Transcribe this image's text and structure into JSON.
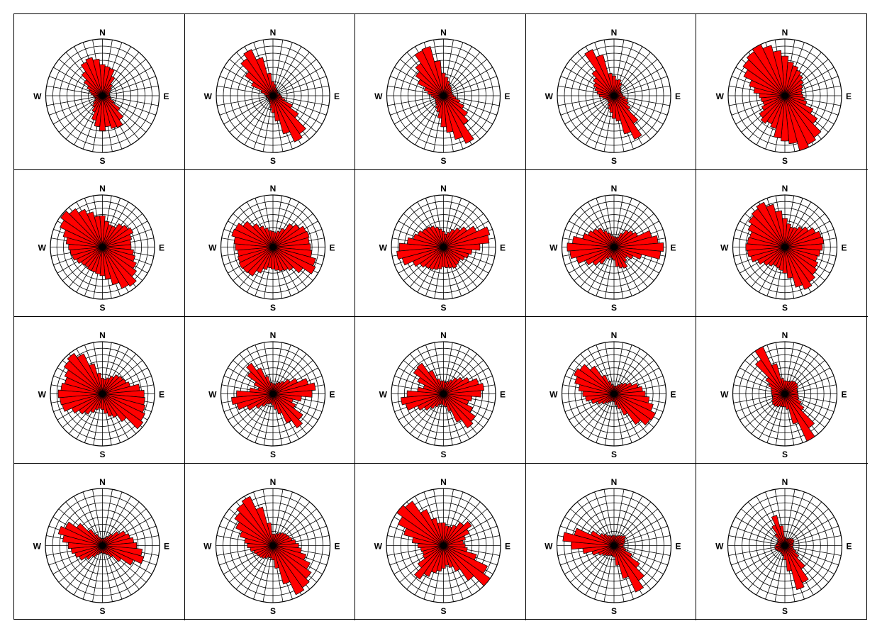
{
  "labels": {
    "north": "N",
    "south": "S",
    "east": "E",
    "west": "W"
  },
  "colors": {
    "petal": "#ff0000",
    "petal_stroke": "#000000",
    "grid": "#000000",
    "background": "#ffffff"
  },
  "chart_data": [
    {
      "type": "rose",
      "sectors": 36,
      "rings": 8,
      "values": [
        0.55,
        0.52,
        0.5,
        0.38,
        0.25,
        0.2,
        0.16,
        0.13,
        0.12,
        0.13,
        0.14,
        0.16,
        0.23,
        0.38,
        0.52,
        0.62,
        0.6,
        0.55,
        0.62,
        0.55,
        0.45,
        0.32,
        0.25,
        0.2,
        0.15,
        0.13,
        0.14,
        0.16,
        0.2,
        0.24,
        0.3,
        0.4,
        0.52,
        0.66,
        0.7,
        0.65
      ]
    },
    {
      "type": "rose",
      "sectors": 36,
      "rings": 8,
      "values": [
        0.25,
        0.2,
        0.15,
        0.12,
        0.11,
        0.1,
        0.1,
        0.1,
        0.12,
        0.14,
        0.16,
        0.22,
        0.38,
        0.55,
        0.82,
        0.9,
        0.7,
        0.45,
        0.3,
        0.22,
        0.15,
        0.12,
        0.11,
        0.1,
        0.1,
        0.1,
        0.11,
        0.12,
        0.15,
        0.22,
        0.42,
        0.6,
        0.8,
        0.9,
        0.7,
        0.4
      ]
    },
    {
      "type": "rose",
      "sectors": 36,
      "rings": 8,
      "values": [
        0.4,
        0.33,
        0.27,
        0.22,
        0.2,
        0.18,
        0.16,
        0.16,
        0.16,
        0.18,
        0.22,
        0.3,
        0.4,
        0.52,
        0.62,
        0.93,
        0.8,
        0.65,
        0.55,
        0.4,
        0.3,
        0.25,
        0.2,
        0.18,
        0.16,
        0.16,
        0.18,
        0.22,
        0.28,
        0.35,
        0.5,
        0.6,
        0.7,
        0.88,
        0.9,
        0.62
      ]
    },
    {
      "type": "rose",
      "sectors": 36,
      "rings": 8,
      "values": [
        0.35,
        0.28,
        0.3,
        0.25,
        0.18,
        0.15,
        0.14,
        0.14,
        0.15,
        0.16,
        0.2,
        0.25,
        0.28,
        0.35,
        0.6,
        0.85,
        0.7,
        0.45,
        0.4,
        0.3,
        0.25,
        0.2,
        0.15,
        0.14,
        0.14,
        0.16,
        0.2,
        0.26,
        0.3,
        0.35,
        0.4,
        0.45,
        0.55,
        0.9,
        0.75,
        0.4
      ]
    },
    {
      "type": "rose",
      "sectors": 36,
      "rings": 8,
      "values": [
        0.7,
        0.6,
        0.55,
        0.5,
        0.45,
        0.4,
        0.35,
        0.32,
        0.3,
        0.32,
        0.35,
        0.4,
        0.55,
        0.7,
        0.9,
        0.95,
        1.0,
        0.85,
        0.8,
        0.75,
        0.6,
        0.55,
        0.6,
        0.55,
        0.45,
        0.4,
        0.42,
        0.45,
        0.55,
        0.65,
        0.8,
        0.9,
        0.95,
        1.0,
        0.92,
        0.8
      ]
    },
    {
      "type": "rose",
      "sectors": 36,
      "rings": 8,
      "values": [
        0.6,
        0.5,
        0.45,
        0.45,
        0.55,
        0.6,
        0.65,
        0.58,
        0.55,
        0.55,
        0.6,
        0.65,
        0.72,
        0.8,
        0.92,
        0.88,
        0.75,
        0.62,
        0.55,
        0.52,
        0.5,
        0.5,
        0.48,
        0.5,
        0.55,
        0.6,
        0.62,
        0.65,
        0.7,
        0.78,
        0.9,
        0.98,
        0.9,
        0.8,
        0.7,
        0.6
      ]
    },
    {
      "type": "rose",
      "sectors": 36,
      "rings": 8,
      "values": [
        0.3,
        0.28,
        0.32,
        0.4,
        0.55,
        0.62,
        0.7,
        0.72,
        0.7,
        0.72,
        0.75,
        0.85,
        0.9,
        0.7,
        0.55,
        0.5,
        0.48,
        0.45,
        0.42,
        0.4,
        0.45,
        0.55,
        0.68,
        0.7,
        0.72,
        0.7,
        0.68,
        0.72,
        0.75,
        0.82,
        0.8,
        0.7,
        0.55,
        0.45,
        0.38,
        0.32
      ]
    },
    {
      "type": "rose",
      "sectors": 36,
      "rings": 8,
      "values": [
        0.3,
        0.25,
        0.3,
        0.38,
        0.45,
        0.55,
        0.7,
        0.92,
        0.88,
        0.7,
        0.55,
        0.5,
        0.45,
        0.4,
        0.42,
        0.45,
        0.42,
        0.4,
        0.38,
        0.42,
        0.45,
        0.48,
        0.5,
        0.55,
        0.65,
        0.82,
        0.9,
        0.85,
        0.7,
        0.6,
        0.55,
        0.5,
        0.48,
        0.45,
        0.4,
        0.35
      ]
    },
    {
      "type": "rose",
      "sectors": 36,
      "rings": 8,
      "values": [
        0.2,
        0.18,
        0.2,
        0.3,
        0.4,
        0.45,
        0.5,
        0.75,
        0.85,
        0.95,
        0.9,
        0.55,
        0.4,
        0.3,
        0.35,
        0.45,
        0.42,
        0.38,
        0.25,
        0.22,
        0.2,
        0.25,
        0.4,
        0.5,
        0.6,
        0.75,
        0.85,
        0.9,
        0.8,
        0.62,
        0.55,
        0.5,
        0.45,
        0.35,
        0.28,
        0.22
      ]
    },
    {
      "type": "rose",
      "sectors": 36,
      "rings": 8,
      "values": [
        0.55,
        0.45,
        0.4,
        0.42,
        0.48,
        0.55,
        0.65,
        0.72,
        0.75,
        0.72,
        0.68,
        0.65,
        0.7,
        0.75,
        0.82,
        0.9,
        0.8,
        0.6,
        0.5,
        0.45,
        0.42,
        0.4,
        0.45,
        0.5,
        0.58,
        0.68,
        0.72,
        0.75,
        0.72,
        0.7,
        0.78,
        0.85,
        0.9,
        0.95,
        0.85,
        0.7
      ]
    },
    {
      "type": "rose",
      "sectors": 36,
      "rings": 8,
      "values": [
        0.3,
        0.28,
        0.32,
        0.38,
        0.45,
        0.48,
        0.5,
        0.55,
        0.72,
        0.8,
        0.82,
        0.85,
        0.9,
        0.95,
        0.65,
        0.5,
        0.45,
        0.38,
        0.3,
        0.28,
        0.32,
        0.4,
        0.48,
        0.55,
        0.65,
        0.8,
        0.82,
        0.85,
        0.8,
        0.75,
        0.8,
        0.9,
        0.95,
        0.85,
        0.6,
        0.4
      ]
    },
    {
      "type": "rose",
      "sectors": 36,
      "rings": 8,
      "values": [
        0.2,
        0.18,
        0.22,
        0.25,
        0.3,
        0.4,
        0.52,
        0.7,
        0.82,
        0.75,
        0.55,
        0.4,
        0.48,
        0.7,
        0.8,
        0.62,
        0.4,
        0.3,
        0.22,
        0.18,
        0.2,
        0.22,
        0.3,
        0.4,
        0.55,
        0.72,
        0.8,
        0.7,
        0.45,
        0.3,
        0.4,
        0.6,
        0.72,
        0.55,
        0.35,
        0.22
      ]
    },
    {
      "type": "rose",
      "sectors": 36,
      "rings": 8,
      "values": [
        0.25,
        0.22,
        0.25,
        0.3,
        0.38,
        0.45,
        0.55,
        0.7,
        0.78,
        0.72,
        0.55,
        0.5,
        0.62,
        0.75,
        0.8,
        0.6,
        0.35,
        0.25,
        0.22,
        0.2,
        0.22,
        0.28,
        0.35,
        0.45,
        0.55,
        0.75,
        0.82,
        0.7,
        0.5,
        0.4,
        0.55,
        0.7,
        0.72,
        0.5,
        0.3,
        0.25
      ]
    },
    {
      "type": "rose",
      "sectors": 36,
      "rings": 8,
      "values": [
        0.15,
        0.14,
        0.16,
        0.2,
        0.25,
        0.3,
        0.38,
        0.48,
        0.55,
        0.6,
        0.68,
        0.78,
        0.88,
        0.85,
        0.72,
        0.45,
        0.3,
        0.22,
        0.15,
        0.14,
        0.15,
        0.18,
        0.22,
        0.28,
        0.35,
        0.45,
        0.55,
        0.6,
        0.68,
        0.78,
        0.85,
        0.8,
        0.65,
        0.4,
        0.25,
        0.18
      ]
    },
    {
      "type": "rose",
      "sectors": 36,
      "rings": 8,
      "values": [
        0.25,
        0.25,
        0.25,
        0.28,
        0.3,
        0.3,
        0.28,
        0.25,
        0.24,
        0.25,
        0.26,
        0.28,
        0.35,
        0.45,
        0.8,
        1.0,
        0.6,
        0.3,
        0.25,
        0.25,
        0.25,
        0.28,
        0.3,
        0.3,
        0.28,
        0.25,
        0.24,
        0.25,
        0.26,
        0.28,
        0.35,
        0.45,
        0.8,
        1.0,
        0.6,
        0.3
      ]
    },
    {
      "type": "rose",
      "sectors": 36,
      "rings": 8,
      "values": [
        0.12,
        0.12,
        0.14,
        0.18,
        0.25,
        0.35,
        0.45,
        0.5,
        0.55,
        0.6,
        0.7,
        0.75,
        0.6,
        0.4,
        0.25,
        0.18,
        0.15,
        0.14,
        0.13,
        0.12,
        0.14,
        0.18,
        0.25,
        0.35,
        0.45,
        0.5,
        0.55,
        0.6,
        0.7,
        0.8,
        0.72,
        0.55,
        0.35,
        0.22,
        0.15,
        0.12
      ]
    },
    {
      "type": "rose",
      "sectors": 36,
      "rings": 8,
      "values": [
        0.2,
        0.2,
        0.22,
        0.25,
        0.28,
        0.3,
        0.32,
        0.35,
        0.4,
        0.45,
        0.5,
        0.6,
        0.72,
        0.82,
        0.9,
        0.95,
        0.7,
        0.4,
        0.25,
        0.22,
        0.22,
        0.25,
        0.28,
        0.3,
        0.32,
        0.35,
        0.4,
        0.45,
        0.5,
        0.6,
        0.72,
        0.82,
        0.9,
        0.95,
        0.7,
        0.4
      ]
    },
    {
      "type": "rose",
      "sectors": 36,
      "rings": 8,
      "values": [
        0.4,
        0.35,
        0.35,
        0.4,
        0.5,
        0.6,
        0.5,
        0.4,
        0.35,
        0.38,
        0.42,
        0.6,
        0.85,
        1.0,
        0.75,
        0.5,
        0.4,
        0.35,
        0.4,
        0.45,
        0.5,
        0.6,
        0.72,
        0.55,
        0.4,
        0.38,
        0.4,
        0.45,
        0.55,
        0.72,
        0.88,
        1.0,
        0.95,
        0.7,
        0.5,
        0.4
      ]
    },
    {
      "type": "rose",
      "sectors": 36,
      "rings": 8,
      "values": [
        0.18,
        0.16,
        0.18,
        0.2,
        0.22,
        0.25,
        0.22,
        0.2,
        0.18,
        0.16,
        0.18,
        0.22,
        0.35,
        0.55,
        0.75,
        0.9,
        0.6,
        0.35,
        0.2,
        0.18,
        0.18,
        0.2,
        0.22,
        0.25,
        0.3,
        0.4,
        0.55,
        0.75,
        0.9,
        0.72,
        0.45,
        0.3,
        0.25,
        0.2,
        0.18,
        0.17
      ]
    },
    {
      "type": "rose",
      "sectors": 36,
      "rings": 8,
      "values": [
        0.15,
        0.12,
        0.12,
        0.14,
        0.16,
        0.18,
        0.18,
        0.16,
        0.15,
        0.14,
        0.14,
        0.16,
        0.22,
        0.3,
        0.5,
        0.72,
        0.8,
        0.45,
        0.25,
        0.18,
        0.15,
        0.14,
        0.14,
        0.15,
        0.16,
        0.18,
        0.18,
        0.16,
        0.15,
        0.14,
        0.14,
        0.16,
        0.25,
        0.4,
        0.55,
        0.35
      ]
    }
  ]
}
